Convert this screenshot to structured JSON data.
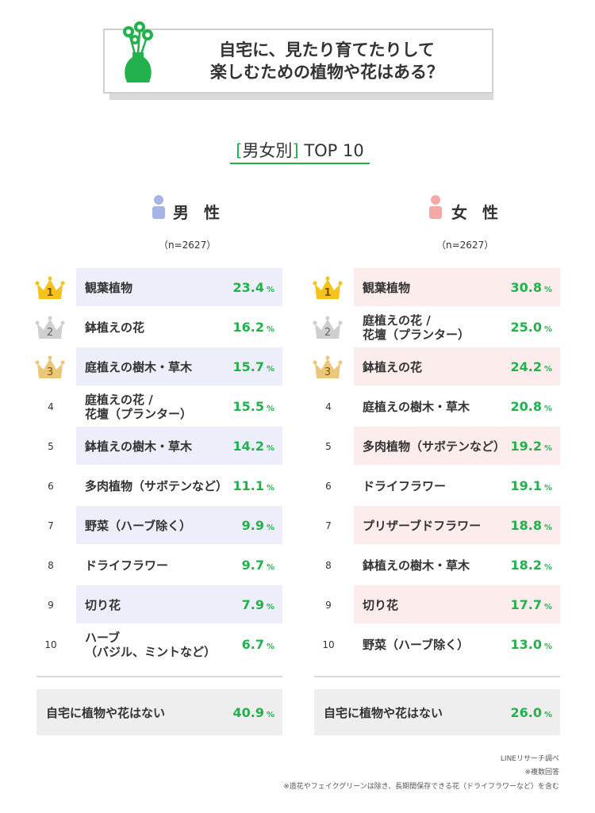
{
  "header": {
    "title_line1": "自宅に、見たり育てたりして",
    "title_line2": "楽しむための植物や花はある？"
  },
  "subtitle": {
    "bracket_open": "[",
    "text": "男女別",
    "bracket_close": "]",
    "top": "TOP 10"
  },
  "colors": {
    "accent": "#22b14c",
    "male_row": "#eceef9",
    "female_row": "#fdecec",
    "male_icon": "#a8b4e8",
    "female_icon": "#f5a9a6",
    "gold": "#f6c21b",
    "silver": "#cfcfcf",
    "bronze": "#ecc67a"
  },
  "chart_data": [
    {
      "type": "table",
      "group": "男 性",
      "n": "（n=2627）",
      "ranks": [
        "1",
        "2",
        "3",
        "4",
        "5",
        "6",
        "7",
        "8",
        "9",
        "10"
      ],
      "categories": [
        [
          "観葉植物"
        ],
        [
          "鉢植えの花"
        ],
        [
          "庭植えの樹木・草木"
        ],
        [
          "庭植えの花 /",
          "花壇（プランター）"
        ],
        [
          "鉢植えの樹木・草木"
        ],
        [
          "多肉植物（サボテンなど）"
        ],
        [
          "野菜（ハーブ除く）"
        ],
        [
          "ドライフラワー"
        ],
        [
          "切り花"
        ],
        [
          "ハーブ",
          "（バジル、ミントなど）"
        ]
      ],
      "values": [
        "23.4",
        "16.2",
        "15.7",
        "15.5",
        "14.2",
        "11.1",
        "9.9",
        "9.7",
        "7.9",
        "6.7"
      ],
      "unit": "%",
      "none_label": "自宅に植物や花はない",
      "none_value": "40.9"
    },
    {
      "type": "table",
      "group": "女 性",
      "n": "（n=2627）",
      "ranks": [
        "1",
        "2",
        "3",
        "4",
        "5",
        "6",
        "7",
        "8",
        "9",
        "10"
      ],
      "categories": [
        [
          "観葉植物"
        ],
        [
          "庭植えの花 /",
          "花壇（プランター）"
        ],
        [
          "鉢植えの花"
        ],
        [
          "庭植えの樹木・草木"
        ],
        [
          "多肉植物（サボテンなど）"
        ],
        [
          "ドライフラワー"
        ],
        [
          "プリザーブドフラワー"
        ],
        [
          "鉢植えの樹木・草木"
        ],
        [
          "切り花"
        ],
        [
          "野菜（ハーブ除く）"
        ]
      ],
      "values": [
        "30.8",
        "25.0",
        "24.2",
        "20.8",
        "19.2",
        "19.1",
        "18.8",
        "18.2",
        "17.7",
        "13.0"
      ],
      "unit": "%",
      "none_label": "自宅に植物や花はない",
      "none_value": "26.0"
    }
  ],
  "notes": [
    "LINEリサーチ調べ",
    "※複数回答",
    "※造花やフェイクグリーンは除き、長期間保存できる花（ドライフラワーなど）を含む"
  ]
}
